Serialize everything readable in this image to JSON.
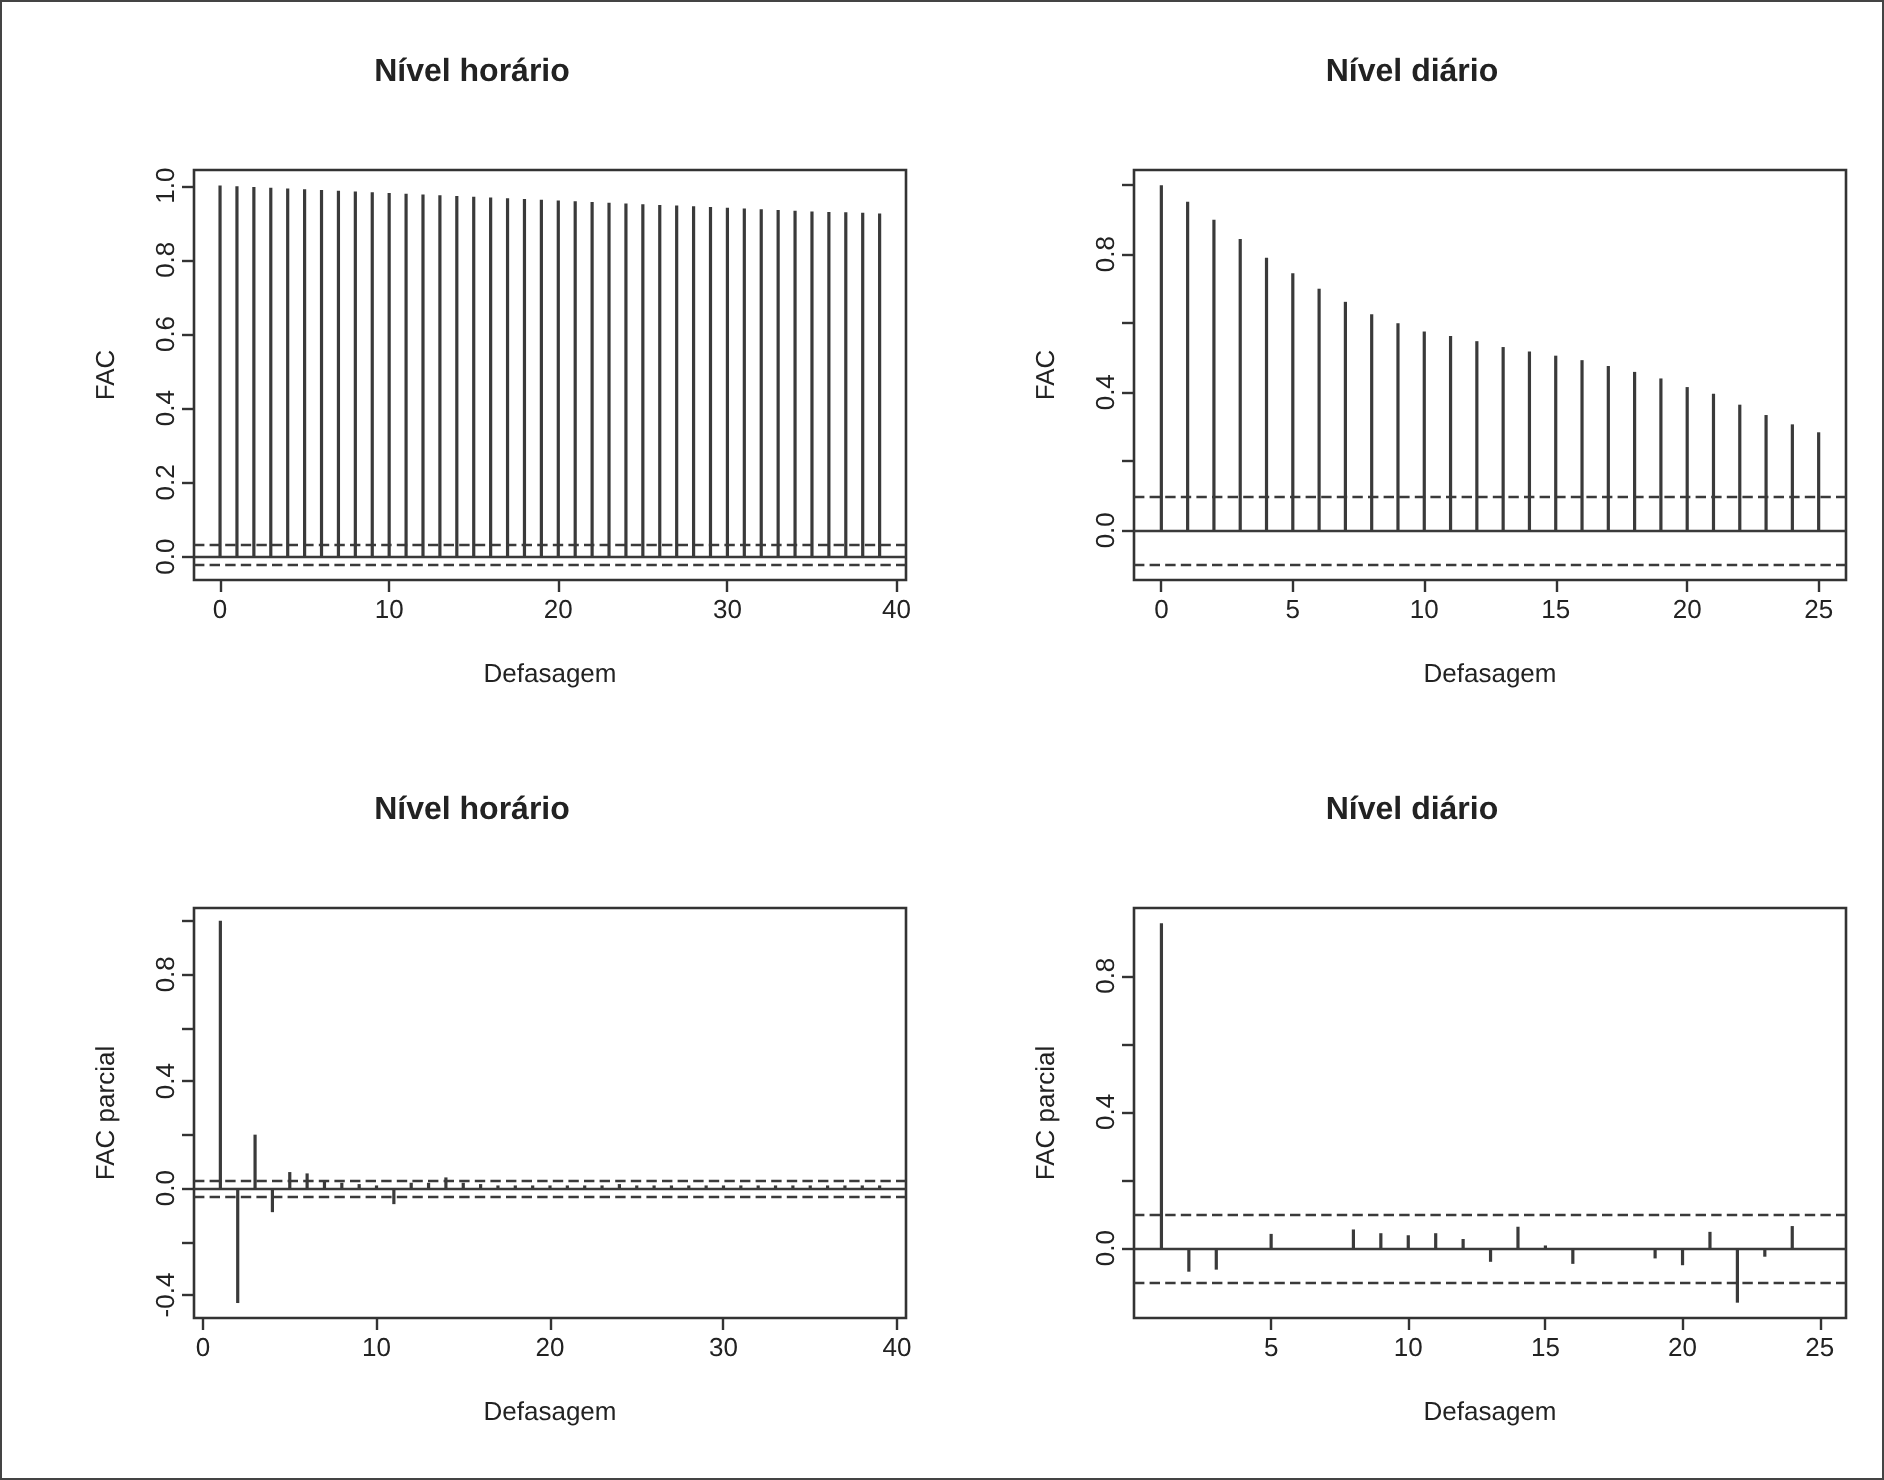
{
  "chart_data": [
    {
      "type": "bar",
      "title": "Nível horário",
      "xlabel": "Defasagem",
      "ylabel": "FAC",
      "x": [
        0,
        1,
        2,
        3,
        4,
        5,
        6,
        7,
        8,
        9,
        10,
        11,
        12,
        13,
        14,
        15,
        16,
        17,
        18,
        19,
        20,
        21,
        22,
        23,
        24,
        25,
        26,
        27,
        28,
        29,
        30,
        31,
        32,
        33,
        34,
        35,
        36,
        37,
        38,
        39
      ],
      "series": [
        {
          "color": "#3a3a3a",
          "values": [
            1.0,
            0.998,
            0.996,
            0.994,
            0.992,
            0.99,
            0.988,
            0.986,
            0.984,
            0.982,
            0.98,
            0.978,
            0.976,
            0.974,
            0.972,
            0.97,
            0.968,
            0.966,
            0.964,
            0.962,
            0.96,
            0.958,
            0.956,
            0.954,
            0.952,
            0.95,
            0.948,
            0.946,
            0.944,
            0.942,
            0.94,
            0.938,
            0.936,
            0.934,
            0.932,
            0.93,
            0.929,
            0.928,
            0.927,
            0.925
          ]
        }
      ],
      "xlim": [
        -1.54,
        40.56
      ],
      "xticks": [
        0,
        10,
        20,
        30,
        40
      ],
      "ylim": [
        -0.063,
        1.042
      ],
      "yticks": [
        {
          "value": 0,
          "label": "0.0"
        },
        0.2,
        0.4,
        0.6,
        0.8,
        {
          "value": 1,
          "label": "1.0"
        }
      ],
      "ref_lines": [
        {
          "axis": "y",
          "value": 0,
          "line_style": "solid",
          "color": "#3a3a3a"
        },
        {
          "axis": "y",
          "value": 0.025,
          "line_style": "dashed",
          "color": "#3a3a3a"
        },
        {
          "axis": "y",
          "value": -0.021,
          "line_style": "dashed",
          "color": "#3a3a3a"
        }
      ],
      "grid": false
    },
    {
      "type": "bar",
      "title": "Nível diário",
      "xlabel": "Defasagem",
      "ylabel": "FAC",
      "x": [
        0,
        1,
        2,
        3,
        4,
        5,
        6,
        7,
        8,
        9,
        10,
        11,
        12,
        13,
        14,
        15,
        16,
        17,
        18,
        19,
        20,
        21,
        22,
        23,
        24,
        25
      ],
      "series": [
        {
          "color": "#3a3a3a",
          "values": [
            1.0,
            0.952,
            0.9,
            0.844,
            0.79,
            0.745,
            0.7,
            0.662,
            0.626,
            0.6,
            0.576,
            0.563,
            0.548,
            0.531,
            0.518,
            0.506,
            0.493,
            0.476,
            0.459,
            0.44,
            0.415,
            0.396,
            0.364,
            0.334,
            0.307,
            0.284
          ]
        }
      ],
      "xlim": [
        -1.04,
        26.04
      ],
      "xticks": [
        0,
        5,
        10,
        15,
        20,
        25
      ],
      "ylim": [
        -0.144,
        1.044
      ],
      "yticks": [
        {
          "value": 0,
          "label": "0.0"
        },
        {
          "value": 0.2,
          "label": null
        },
        0.4,
        {
          "value": 0.6,
          "label": null
        },
        0.8,
        {
          "value": 1,
          "label": null
        }
      ],
      "ref_lines": [
        {
          "axis": "y",
          "value": 0,
          "line_style": "solid",
          "color": "#3a3a3a"
        },
        {
          "axis": "y",
          "value": 0.1,
          "line_style": "dashed",
          "color": "#3a3a3a"
        },
        {
          "axis": "y",
          "value": -0.1,
          "line_style": "dashed",
          "color": "#3a3a3a"
        }
      ],
      "grid": false
    },
    {
      "type": "bar",
      "title": "Nível horário",
      "xlabel": "Defasagem",
      "ylabel": "FAC parcial",
      "x": [
        1,
        2,
        3,
        4,
        5,
        6,
        7,
        8,
        9,
        10,
        11,
        12,
        13,
        14,
        15,
        16,
        17,
        18,
        19,
        20,
        21,
        22,
        23,
        24,
        25,
        26,
        27,
        28,
        29,
        30,
        31,
        32,
        33,
        34,
        35,
        36,
        37,
        38,
        39
      ],
      "series": [
        {
          "color": "#3a3a3a",
          "values": [
            1.0,
            -0.43,
            0.2,
            -0.09,
            0.06,
            0.055,
            0.03,
            0.02,
            0.015,
            0.01,
            -0.06,
            0.02,
            0.02,
            0.04,
            0.02,
            0.015,
            0.01,
            0.01,
            0.01,
            0.01,
            0.01,
            0.01,
            0.01,
            0.015,
            0.01,
            0.01,
            0.01,
            0.01,
            0.01,
            0.01,
            0.01,
            0.01,
            0.01,
            0.01,
            0.01,
            0.01,
            0.01,
            0.01,
            0.01
          ]
        }
      ],
      "xlim": [
        -0.52,
        40.52
      ],
      "xticks": [
        0,
        10,
        20,
        30,
        40
      ],
      "ylim": [
        -0.486,
        1.048
      ],
      "yticks": [
        {
          "value": -0.4,
          "label": "-0.4"
        },
        {
          "value": -0.2,
          "label": null
        },
        {
          "value": 0,
          "label": "0.0"
        },
        {
          "value": 0.2,
          "label": null
        },
        0.4,
        {
          "value": 0.6,
          "label": null
        },
        0.8,
        {
          "value": 1,
          "label": null
        }
      ],
      "ref_lines": [
        {
          "axis": "y",
          "value": 0,
          "line_style": "solid",
          "color": "#3a3a3a"
        },
        {
          "axis": "y",
          "value": 0.025,
          "line_style": "dashed",
          "color": "#3a3a3a"
        },
        {
          "axis": "y",
          "value": -0.025,
          "line_style": "dashed",
          "color": "#3a3a3a"
        }
      ],
      "grid": false
    },
    {
      "type": "bar",
      "title": "Nível diário",
      "xlabel": "Defasagem",
      "ylabel": "FAC parcial",
      "x": [
        1,
        2,
        3,
        4,
        5,
        6,
        7,
        8,
        9,
        10,
        11,
        12,
        13,
        14,
        15,
        16,
        17,
        18,
        19,
        20,
        21,
        22,
        23,
        24,
        25
      ],
      "series": [
        {
          "color": "#3a3a3a",
          "values": [
            0.954,
            -0.069,
            -0.063,
            null,
            0.042,
            null,
            null,
            0.055,
            0.044,
            0.038,
            0.044,
            0.027,
            -0.04,
            0.063,
            0.008,
            -0.046,
            -0.005,
            null,
            -0.03,
            -0.05,
            0.048,
            -0.16,
            -0.025,
            0.065,
            -0.005
          ]
        }
      ],
      "xlim": [
        0,
        25.96
      ],
      "xticks": [
        5,
        10,
        15,
        20,
        25
      ],
      "ylim": [
        -0.205,
        0.999
      ],
      "yticks": [
        {
          "value": 0,
          "label": "0.0"
        },
        {
          "value": 0.2,
          "label": null
        },
        0.4,
        {
          "value": 0.6,
          "label": null
        },
        0.8
      ],
      "ref_lines": [
        {
          "axis": "y",
          "value": 0,
          "line_style": "solid",
          "color": "#3a3a3a"
        },
        {
          "axis": "y",
          "value": 0.1,
          "line_style": "dashed",
          "color": "#3a3a3a"
        },
        {
          "axis": "y",
          "value": -0.1,
          "line_style": "dashed",
          "color": "#3a3a3a"
        }
      ],
      "grid": false
    }
  ]
}
